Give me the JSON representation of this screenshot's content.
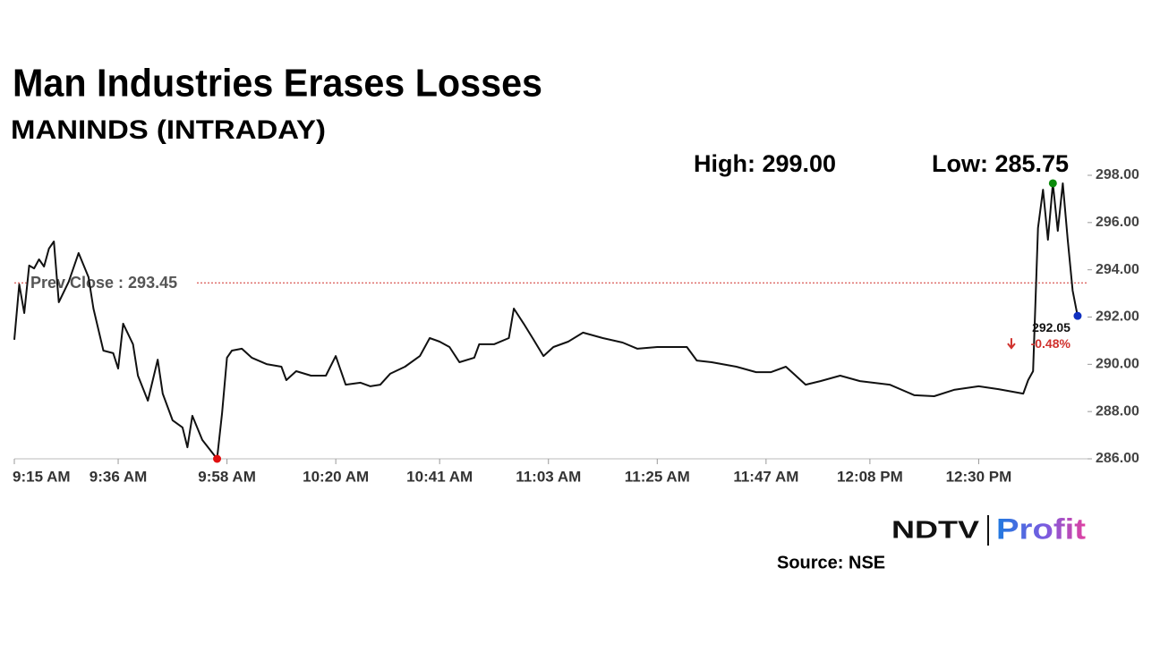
{
  "chart_data": {
    "type": "line",
    "title": "Man Industries Erases Losses",
    "subtitle": "MANINDS (INTRADAY)",
    "annotations": [
      "High: 299.00",
      "Low: 285.75"
    ],
    "reference_line": {
      "label": "Prev Close : 293.45",
      "value": 293.45,
      "color": "#d0312d"
    },
    "change_label": "-0.48%",
    "change_color": "#d0312d",
    "markers": {
      "high": "#0a8a0a",
      "low": "#e01010",
      "last": "#1030c0"
    },
    "x": [
      "9:15 AM",
      "9:16 AM",
      "9:17 AM",
      "9:18 AM",
      "9:19 AM",
      "9:20 AM",
      "9:21 AM",
      "9:22 AM",
      "9:23 AM",
      "9:24 AM",
      "9:26 AM",
      "9:28 AM",
      "9:30 AM",
      "9:31 AM",
      "9:33 AM",
      "9:35 AM",
      "9:36 AM",
      "9:37 AM",
      "9:39 AM",
      "9:40 AM",
      "9:42 AM",
      "9:44 AM",
      "9:45 AM",
      "9:47 AM",
      "9:49 AM",
      "9:50 AM",
      "9:51 AM",
      "9:53 AM",
      "9:56 AM",
      "9:57 AM",
      "9:58 AM",
      "9:59 AM",
      "10:01 AM",
      "10:03 AM",
      "10:06 AM",
      "10:09 AM",
      "10:10 AM",
      "10:12 AM",
      "10:15 AM",
      "10:18 AM",
      "10:20 AM",
      "10:22 AM",
      "10:25 AM",
      "10:27 AM",
      "10:29 AM",
      "10:31 AM",
      "10:34 AM",
      "10:37 AM",
      "10:39 AM",
      "10:41 AM",
      "10:43 AM",
      "10:45 AM",
      "10:48 AM",
      "10:49 AM",
      "10:52 AM",
      "10:55 AM",
      "10:56 AM",
      "10:58 AM",
      "11:00 AM",
      "11:02 AM",
      "11:04 AM",
      "11:07 AM",
      "11:10 AM",
      "11:14 AM",
      "11:18 AM",
      "11:21 AM",
      "11:25 AM",
      "11:31 AM",
      "11:33 AM",
      "11:36 AM",
      "11:41 AM",
      "11:45 AM",
      "11:48 AM",
      "11:51 AM",
      "11:55 AM",
      "11:58 AM",
      "12:02 PM",
      "12:06 PM",
      "12:12 PM",
      "12:17 PM",
      "12:21 PM",
      "12:25 PM",
      "12:30 PM",
      "12:34 PM",
      "12:39 PM",
      "12:40 PM",
      "12:41 PM",
      "12:42 PM",
      "12:43 PM",
      "12:44 PM",
      "12:45 PM",
      "12:46 PM",
      "12:47 PM",
      "12:48 PM",
      "12:49 PM",
      "12:50 PM"
    ],
    "series": [
      {
        "name": "MANINDS",
        "color": "#111111",
        "values": [
          291.04,
          293.38,
          292.17,
          294.18,
          294.06,
          294.44,
          294.14,
          294.9,
          295.2,
          292.63,
          293.5,
          294.71,
          293.69,
          292.36,
          290.58,
          290.47,
          289.82,
          291.72,
          290.85,
          289.52,
          288.46,
          290.2,
          288.76,
          287.63,
          287.33,
          286.49,
          287.82,
          286.8,
          286.0,
          287.93,
          290.28,
          290.58,
          290.66,
          290.28,
          290.01,
          289.9,
          289.33,
          289.71,
          289.52,
          289.52,
          290.35,
          289.14,
          289.22,
          289.07,
          289.14,
          289.6,
          289.9,
          290.35,
          291.11,
          290.96,
          290.73,
          290.09,
          290.28,
          290.85,
          290.85,
          291.11,
          292.36,
          291.72,
          291.04,
          290.35,
          290.73,
          290.96,
          291.34,
          291.11,
          290.92,
          290.66,
          290.73,
          290.73,
          290.16,
          290.09,
          289.9,
          289.67,
          289.67,
          289.9,
          289.14,
          289.29,
          289.52,
          289.29,
          289.14,
          288.69,
          288.65,
          288.92,
          289.07,
          288.95,
          288.76,
          289.33,
          289.71,
          295.77,
          297.39,
          295.27,
          297.66,
          295.65,
          297.66,
          295.27,
          293.12,
          292.05
        ]
      }
    ],
    "xlim": [
      "9:15 AM",
      "12:52 PM"
    ],
    "xticks": [
      "9:15 AM",
      "9:36 AM",
      "9:58 AM",
      "10:20 AM",
      "10:41 AM",
      "11:03 AM",
      "11:25 AM",
      "11:47 AM",
      "12:08 PM",
      "12:30 PM"
    ],
    "ylim": [
      286,
      298
    ],
    "yticks": [
      {
        "value": 286,
        "label": "286.00"
      },
      {
        "value": 288,
        "label": "288.00"
      },
      {
        "value": 290,
        "label": "290.00"
      },
      {
        "value": 292,
        "label": "292.00"
      },
      {
        "value": 294,
        "label": "294.00"
      },
      {
        "value": 296,
        "label": "296.00"
      },
      {
        "value": 298,
        "label": "298.00"
      }
    ],
    "grid": false
  },
  "branding": {
    "logo": "NDTV",
    "product": "Profit",
    "source": "Source: NSE"
  }
}
